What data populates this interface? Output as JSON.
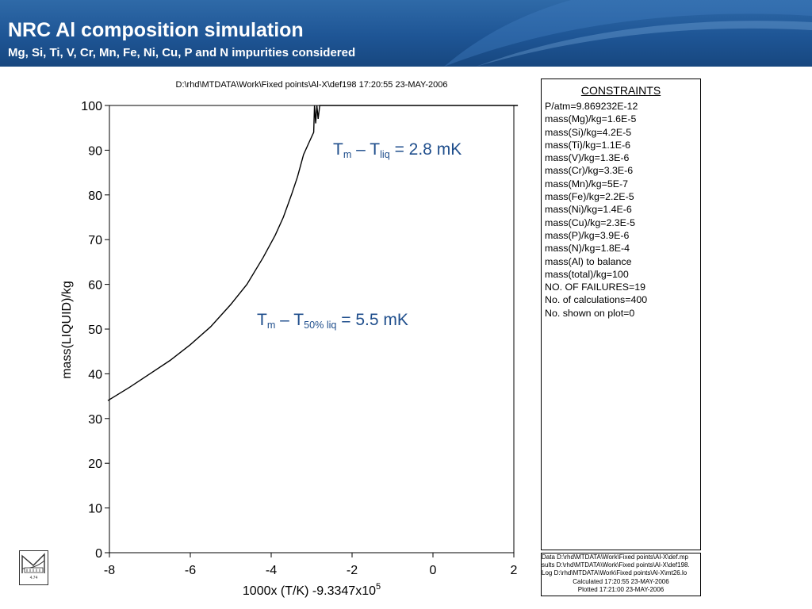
{
  "header": {
    "title": "NRC Al composition simulation",
    "subtitle": "Mg, Si, Ti, V, Cr, Mn, Fe, Ni, Cu, P and N impurities considered"
  },
  "annotations": {
    "a1": {
      "t": "T",
      "sub1": "m",
      "mid": " – T",
      "sub2": "liq",
      "end": " = 2.8 mK"
    },
    "a2": {
      "t": "T",
      "sub1": "m",
      "mid": " – T",
      "sub2": "50% liq",
      "end": " = 5.5 mK"
    }
  },
  "constraints": {
    "title": "CONSTRAINTS",
    "items": [
      "P/atm=9.869232E-12",
      "mass(Mg)/kg=1.6E-5",
      "mass(Si)/kg=4.2E-5",
      "mass(Ti)/kg=1.1E-6",
      "mass(V)/kg=1.3E-6",
      "mass(Cr)/kg=3.3E-6",
      "mass(Mn)/kg=5E-7",
      "mass(Fe)/kg=2.2E-5",
      "mass(Ni)/kg=1.4E-6",
      "mass(Cu)/kg=2.3E-5",
      "mass(P)/kg=3.9E-6",
      "mass(N)/kg=1.8E-4",
      "mass(Al) to balance",
      "mass(total)/kg=100",
      "NO. OF FAILURES=19",
      "No. of calculations=400",
      "No. shown on plot=0"
    ]
  },
  "files": {
    "data": "Data D:\\rhd\\MTDATA\\Work\\Fixed points\\Al-X\\def.mp",
    "results": "sults D:\\rhd\\MTDATA\\Work\\Fixed points\\Al-X\\def198.",
    "log": "Log D:\\rhd\\MTDATA\\Work\\Fixed points\\Al-X\\mt26.lo",
    "calculated": "Calculated 17:20:55 23-MAY-2006",
    "plotted": "Plotted  17:21:00 23-MAY-2006"
  },
  "logo": {
    "text": "4.74"
  },
  "chart_data": {
    "type": "line",
    "title": "D:\\rhd\\MTDATA\\Work\\Fixed points\\Al-X\\def198  17:20:55 23-MAY-2006",
    "xlabel": "1000x (T/K) -9.3347x10",
    "xlabel_sup": "5",
    "ylabel": "mass(LIQUID)/kg",
    "xlim": [
      -8,
      2
    ],
    "ylim": [
      0,
      100
    ],
    "xticks": [
      -8,
      -6,
      -4,
      -2,
      0,
      2
    ],
    "yticks": [
      0,
      10,
      20,
      30,
      40,
      50,
      60,
      70,
      80,
      90,
      100
    ],
    "grid": false,
    "series": [
      {
        "x": [
          -8.05,
          -7.5,
          -7.0,
          -6.5,
          -6.0,
          -5.5,
          -5.0,
          -4.6,
          -4.2,
          -3.9,
          -3.7,
          -3.5,
          -3.35,
          -3.2,
          -3.05,
          -2.95,
          -2.93,
          -2.9,
          -2.87,
          -2.84,
          -2.8,
          -2.5,
          -2.0,
          -1.0,
          0.0,
          1.0,
          2.1
        ],
        "y": [
          34,
          37,
          40,
          43,
          46.5,
          50.5,
          55.5,
          60,
          66,
          71,
          75,
          80,
          84,
          89,
          92,
          94,
          100,
          96,
          100,
          97,
          100,
          100,
          100,
          100,
          100,
          100,
          100
        ]
      }
    ]
  }
}
